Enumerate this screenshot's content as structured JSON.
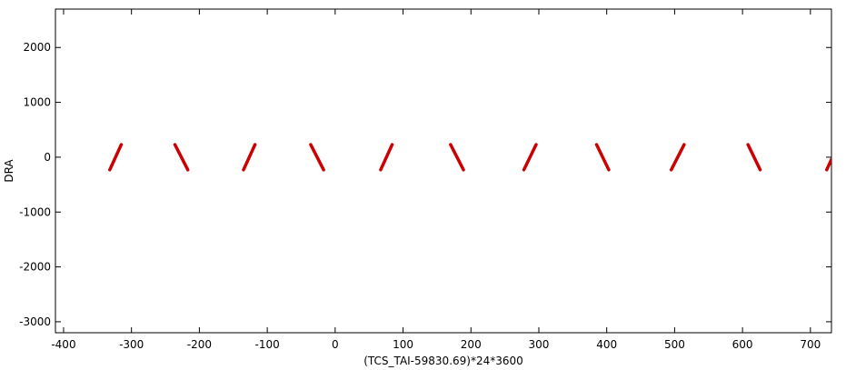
{
  "chart_data": {
    "type": "line",
    "xlabel": "(TCS_TAI-59830.69)*24*3600",
    "ylabel": "DRA",
    "xlim": [
      -412,
      731
    ],
    "ylim": [
      -3200,
      2700
    ],
    "xticks": [
      -400,
      -300,
      -200,
      -100,
      0,
      100,
      200,
      300,
      400,
      500,
      600,
      700
    ],
    "yticks": [
      -3000,
      -2000,
      -1000,
      0,
      1000,
      2000
    ],
    "series": [
      {
        "color": "#cc0000",
        "x": [
          -332,
          -315,
          null,
          -236,
          -217,
          null,
          -135,
          -118,
          null,
          -36,
          -17,
          null,
          67,
          84,
          null,
          170,
          189,
          null,
          278,
          296,
          null,
          385,
          403,
          null,
          495,
          514,
          null,
          608,
          626,
          null,
          724,
          731
        ],
        "values": [
          -230,
          230,
          null,
          230,
          -230,
          null,
          -230,
          230,
          null,
          230,
          -230,
          null,
          -230,
          230,
          null,
          230,
          -230,
          null,
          -230,
          230,
          null,
          230,
          -230,
          null,
          -230,
          230,
          null,
          230,
          -230,
          null,
          -230,
          -40
        ]
      }
    ]
  }
}
